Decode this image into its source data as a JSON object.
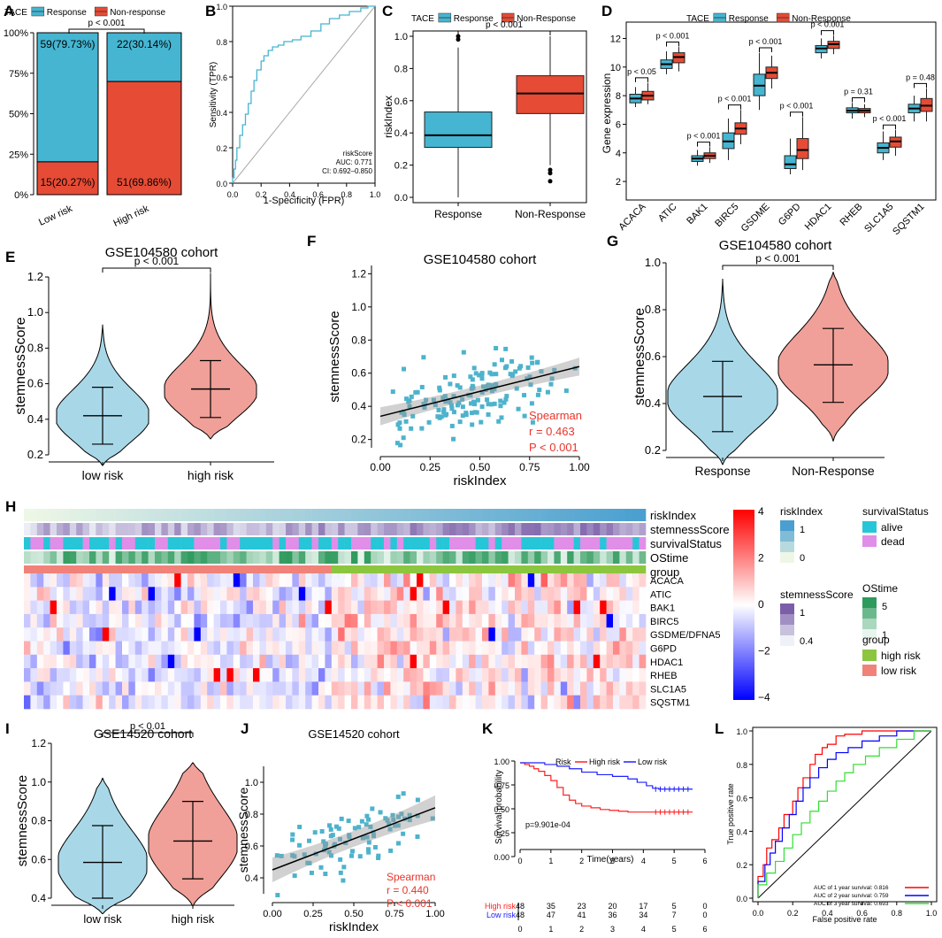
{
  "colors": {
    "response": "#45b5d1",
    "nonresponse": "#e64b35",
    "violin_low": "#a8d8e8",
    "violin_high": "#f0a098",
    "scatter": "#4db3cc",
    "spearman": "#e8362c",
    "km_high": "#ff2020",
    "km_low": "#2020ff",
    "roc1": "#ff0000",
    "roc2": "#0000ff",
    "roc3": "#33dd33"
  },
  "panels": {
    "A": {
      "letter": "A"
    },
    "B": {
      "letter": "B"
    },
    "C": {
      "letter": "C"
    },
    "D": {
      "letter": "D"
    },
    "E": {
      "letter": "E"
    },
    "F": {
      "letter": "F"
    },
    "G": {
      "letter": "G"
    },
    "H": {
      "letter": "H"
    },
    "I": {
      "letter": "I"
    },
    "J": {
      "letter": "J"
    },
    "K": {
      "letter": "K"
    },
    "L": {
      "letter": "L"
    }
  },
  "chart_data": [
    {
      "id": "A",
      "type": "bar",
      "stacked": true,
      "legend_title": "TACE",
      "legend": [
        "Response",
        "Non-response"
      ],
      "categories": [
        "Low risk",
        "High risk"
      ],
      "series": [
        {
          "name": "Response",
          "values": [
            79.73,
            30.14
          ],
          "labels": [
            "59(79.73%)",
            "22(30.14%)"
          ]
        },
        {
          "name": "Non-response",
          "values": [
            20.27,
            69.86
          ],
          "labels": [
            "15(20.27%)",
            "51(69.86%)"
          ]
        }
      ],
      "yticks": [
        "0%",
        "25%",
        "50%",
        "75%",
        "100%"
      ],
      "pvalue": "p < 0.001"
    },
    {
      "id": "B",
      "type": "line",
      "title": "",
      "xlabel": "1-Specificity (FPR)",
      "ylabel": "Sensitivity (TPR)",
      "xticks": [
        "0.0",
        "0.2",
        "0.4",
        "0.6",
        "0.8",
        "1.0"
      ],
      "yticks": [
        "0.0",
        "0.2",
        "0.4",
        "0.6",
        "0.8",
        "1.0"
      ],
      "annotation": [
        "riskScore",
        "AUC: 0.771",
        "CI: 0.692–0.850"
      ],
      "roc": [
        [
          0,
          0
        ],
        [
          0.01,
          0.03
        ],
        [
          0.02,
          0.08
        ],
        [
          0.03,
          0.13
        ],
        [
          0.05,
          0.2
        ],
        [
          0.07,
          0.27
        ],
        [
          0.09,
          0.33
        ],
        [
          0.11,
          0.39
        ],
        [
          0.13,
          0.45
        ],
        [
          0.15,
          0.52
        ],
        [
          0.17,
          0.58
        ],
        [
          0.2,
          0.64
        ],
        [
          0.22,
          0.69
        ],
        [
          0.25,
          0.72
        ],
        [
          0.28,
          0.75
        ],
        [
          0.32,
          0.77
        ],
        [
          0.36,
          0.78
        ],
        [
          0.42,
          0.8
        ],
        [
          0.48,
          0.81
        ],
        [
          0.55,
          0.83
        ],
        [
          0.62,
          0.86
        ],
        [
          0.68,
          0.9
        ],
        [
          0.75,
          0.93
        ],
        [
          0.82,
          0.95
        ],
        [
          0.9,
          0.97
        ],
        [
          0.95,
          0.99
        ],
        [
          1,
          1
        ]
      ]
    },
    {
      "id": "C",
      "type": "box",
      "legend_title": "TACE",
      "legend": [
        "Response",
        "Non-Response"
      ],
      "categories": [
        "Response",
        "Non-Response"
      ],
      "ylabel": "riskIndex",
      "yticks": [
        "0.0",
        "0.2",
        "0.4",
        "0.6",
        "0.8",
        "1.0"
      ],
      "boxes": [
        {
          "min": 0.0,
          "q1": 0.31,
          "median": 0.385,
          "q3": 0.53,
          "max": 0.93,
          "outliers": [
            0.98,
            1.0
          ]
        },
        {
          "min": 0.2,
          "q1": 0.52,
          "median": 0.645,
          "q3": 0.755,
          "max": 1.0,
          "outliers": [
            0.17,
            0.15,
            0.1
          ]
        }
      ],
      "pvalue": "p < 0.001"
    },
    {
      "id": "D",
      "type": "box",
      "legend_title": "TACE",
      "legend": [
        "Response",
        "Non-Response"
      ],
      "categories": [
        "ACACA",
        "ATIC",
        "BAK1",
        "BIRC5",
        "GSDME",
        "G6PD",
        "HDAC1",
        "RHEB",
        "SLC1A5",
        "SQSTM1"
      ],
      "ylabel": "Gene expression",
      "yticks": [
        "2",
        "4",
        "6",
        "8",
        "10",
        "12"
      ],
      "pvalues": [
        "p < 0.05",
        "p < 0.001",
        "p < 0.001",
        "p < 0.001",
        "p < 0.001",
        "p < 0.001",
        "p < 0.001",
        "p = 0.31",
        "p < 0.001",
        "p = 0.48"
      ],
      "series": [
        {
          "name": "Response",
          "boxes": [
            [
              7.2,
              7.5,
              7.8,
              8.1,
              8.6
            ],
            [
              9.5,
              9.9,
              10.2,
              10.5,
              11.1
            ],
            [
              3.1,
              3.4,
              3.6,
              3.8,
              4.2
            ],
            [
              3.5,
              4.3,
              4.8,
              5.4,
              6.4
            ],
            [
              7.0,
              8.0,
              8.7,
              9.5,
              11.0
            ],
            [
              2.5,
              2.9,
              3.2,
              3.8,
              5.0
            ],
            [
              10.6,
              11.0,
              11.3,
              11.5,
              12.0
            ],
            [
              6.4,
              6.8,
              6.95,
              7.15,
              7.5
            ],
            [
              3.5,
              4.0,
              4.35,
              4.7,
              5.5
            ],
            [
              6.2,
              6.8,
              7.1,
              7.4,
              8.0
            ]
          ]
        },
        {
          "name": "Non-Response",
          "boxes": [
            [
              7.4,
              7.7,
              8.0,
              8.3,
              8.9
            ],
            [
              9.7,
              10.3,
              10.7,
              11.0,
              11.4
            ],
            [
              3.3,
              3.6,
              3.8,
              4.0,
              4.4
            ],
            [
              4.6,
              5.3,
              5.7,
              6.1,
              7.0
            ],
            [
              8.5,
              9.2,
              9.6,
              10.0,
              10.8
            ],
            [
              2.8,
              3.6,
              4.2,
              5.0,
              6.5
            ],
            [
              10.9,
              11.3,
              11.6,
              11.8,
              12.2
            ],
            [
              6.5,
              6.8,
              6.95,
              7.1,
              7.4
            ],
            [
              3.8,
              4.4,
              4.8,
              5.1,
              5.6
            ],
            [
              6.2,
              6.9,
              7.3,
              7.8,
              8.5
            ]
          ]
        }
      ]
    },
    {
      "id": "E",
      "type": "violin",
      "title": "GSE104580 cohort",
      "categories": [
        "low risk",
        "high risk"
      ],
      "ylabel": "stemnessScore",
      "yticks": [
        "0.2",
        "0.4",
        "0.6",
        "0.8",
        "1.0",
        "1.2"
      ],
      "stats": [
        {
          "mean": 0.42,
          "lo": 0.26,
          "hi": 0.58,
          "min": 0.14,
          "max": 0.93
        },
        {
          "mean": 0.57,
          "lo": 0.41,
          "hi": 0.73,
          "min": 0.29,
          "max": 1.22
        }
      ],
      "pvalue": "p < 0.001"
    },
    {
      "id": "F",
      "type": "scatter",
      "title": "GSE104580 cohort",
      "xlabel": "riskIndex",
      "ylabel": "stemnessScore",
      "xticks": [
        "0.00",
        "0.25",
        "0.50",
        "0.75",
        "1.00"
      ],
      "yticks": [
        "0.2",
        "0.4",
        "0.6",
        "0.8",
        "1.0",
        "1.2"
      ],
      "stats": [
        "Spearman",
        "r = 0.463",
        "P < 0.001"
      ],
      "fit": [
        [
          0,
          0.34
        ],
        [
          1,
          0.64
        ]
      ]
    },
    {
      "id": "G",
      "type": "violin",
      "title": "GSE104580 cohort",
      "categories": [
        "Response",
        "Non-Response"
      ],
      "ylabel": "stemnessScore",
      "yticks": [
        "0.2",
        "0.4",
        "0.6",
        "0.8",
        "1.0"
      ],
      "stats": [
        {
          "mean": 0.43,
          "lo": 0.28,
          "hi": 0.58,
          "min": 0.14,
          "max": 0.93
        },
        {
          "mean": 0.565,
          "lo": 0.405,
          "hi": 0.72,
          "min": 0.24,
          "max": 0.96
        }
      ],
      "pvalue": "p < 0.001"
    },
    {
      "id": "H",
      "type": "heatmap",
      "annotation_rows": [
        "riskIndex",
        "stemnessScore",
        "survivalStatus",
        "OStime",
        "group"
      ],
      "gene_rows": [
        "ACACA",
        "ATIC",
        "BAK1",
        "BIRC5",
        "GSDME/DFNA5",
        "G6PD",
        "HDAC1",
        "RHEB",
        "SLC1A5",
        "SQSTM1"
      ],
      "colorbar_ticks": [
        "4",
        "2",
        "0",
        "−2",
        "−4"
      ],
      "legends": {
        "riskIndex": {
          "title": "riskIndex",
          "ticks": [
            "1",
            "0"
          ]
        },
        "stemnessScore": {
          "title": "stemnessScore",
          "ticks": [
            "1",
            "0.4"
          ]
        },
        "survivalStatus": {
          "title": "survivalStatus",
          "items": [
            "alive",
            "dead"
          ]
        },
        "OStime": {
          "title": "OStime",
          "ticks": [
            "5",
            "1"
          ]
        },
        "group": {
          "title": "group",
          "items": [
            "high risk",
            "low risk"
          ]
        }
      }
    },
    {
      "id": "I",
      "type": "violin",
      "title": "GSE14520 cohort",
      "categories": [
        "low risk",
        "high risk"
      ],
      "ylabel": "stemnessScore",
      "yticks": [
        "0.4",
        "0.6",
        "0.8",
        "1.0",
        "1.2"
      ],
      "stats": [
        {
          "mean": 0.585,
          "lo": 0.4,
          "hi": 0.775,
          "min": 0.32,
          "max": 1.02
        },
        {
          "mean": 0.695,
          "lo": 0.5,
          "hi": 0.9,
          "min": 0.36,
          "max": 1.1
        }
      ],
      "pvalue": "p < 0.01"
    },
    {
      "id": "J",
      "type": "scatter",
      "title": "GSE14520 cohort",
      "xlabel": "riskIndex",
      "ylabel": "stemnessScore",
      "xticks": [
        "0.00",
        "0.25",
        "0.50",
        "0.75",
        "1.00"
      ],
      "yticks": [
        "0.4",
        "0.6",
        "0.8",
        "1.0"
      ],
      "stats": [
        "Spearman",
        "r = 0.440",
        "P < 0.001"
      ],
      "fit": [
        [
          0,
          0.45
        ],
        [
          1,
          0.84
        ]
      ]
    },
    {
      "id": "K",
      "type": "line",
      "legend_title": "Risk",
      "legend": [
        "High risk",
        "Low risk"
      ],
      "xlabel": "Time(years)",
      "ylabel": "Survival probability",
      "xticks": [
        "0",
        "1",
        "2",
        "3",
        "4",
        "5",
        "6"
      ],
      "yticks": [
        "0.00",
        "0.25",
        "0.50",
        "0.75",
        "1.00"
      ],
      "pvalue": "p=9.901e-04",
      "series": [
        {
          "name": "High risk",
          "points": [
            [
              0,
              1
            ],
            [
              0.15,
              0.98
            ],
            [
              0.3,
              0.96
            ],
            [
              0.45,
              0.93
            ],
            [
              0.6,
              0.9
            ],
            [
              0.8,
              0.85
            ],
            [
              1.0,
              0.79
            ],
            [
              1.2,
              0.71
            ],
            [
              1.4,
              0.62
            ],
            [
              1.6,
              0.56
            ],
            [
              1.8,
              0.52
            ],
            [
              2.0,
              0.49
            ],
            [
              2.3,
              0.47
            ],
            [
              2.6,
              0.45
            ],
            [
              2.9,
              0.44
            ],
            [
              3.2,
              0.43
            ],
            [
              3.5,
              0.42
            ],
            [
              4.0,
              0.42
            ],
            [
              5.6,
              0.42
            ]
          ]
        },
        {
          "name": "Low risk",
          "points": [
            [
              0,
              1
            ],
            [
              0.5,
              1
            ],
            [
              0.8,
              0.98
            ],
            [
              1.2,
              0.96
            ],
            [
              1.6,
              0.93
            ],
            [
              2.0,
              0.89
            ],
            [
              2.5,
              0.86
            ],
            [
              3.0,
              0.84
            ],
            [
              3.5,
              0.81
            ],
            [
              3.8,
              0.77
            ],
            [
              4.1,
              0.73
            ],
            [
              4.3,
              0.7
            ],
            [
              4.5,
              0.69
            ],
            [
              5.6,
              0.69
            ]
          ]
        }
      ],
      "risk_table": {
        "labels": [
          "High risk",
          "Low risk"
        ],
        "High risk": [
          "48",
          "35",
          "23",
          "20",
          "17",
          "5",
          "0"
        ],
        "Low risk": [
          "48",
          "47",
          "41",
          "36",
          "34",
          "7",
          "0"
        ],
        "times": [
          "0",
          "1",
          "2",
          "3",
          "4",
          "5",
          "6"
        ]
      }
    },
    {
      "id": "L",
      "type": "line",
      "xlabel": "False positive rate",
      "ylabel": "True positive rate",
      "xticks": [
        "0.0",
        "0.2",
        "0.4",
        "0.6",
        "0.8",
        "1.0"
      ],
      "yticks": [
        "0.0",
        "0.2",
        "0.4",
        "0.6",
        "0.8",
        "1.0"
      ],
      "series": [
        {
          "name": "AUC of 1 year survival: 0.816",
          "points": [
            [
              0,
              0
            ],
            [
              0.03,
              0.13
            ],
            [
              0.05,
              0.2
            ],
            [
              0.08,
              0.3
            ],
            [
              0.12,
              0.35
            ],
            [
              0.15,
              0.42
            ],
            [
              0.2,
              0.5
            ],
            [
              0.23,
              0.58
            ],
            [
              0.26,
              0.66
            ],
            [
              0.3,
              0.72
            ],
            [
              0.33,
              0.8
            ],
            [
              0.37,
              0.86
            ],
            [
              0.4,
              0.9
            ],
            [
              0.45,
              0.92
            ],
            [
              0.5,
              0.97
            ],
            [
              0.6,
              0.98
            ],
            [
              0.7,
              1
            ],
            [
              1,
              1
            ]
          ]
        },
        {
          "name": "AUC of 2 year survival: 0.759",
          "points": [
            [
              0,
              0
            ],
            [
              0.04,
              0.1
            ],
            [
              0.07,
              0.2
            ],
            [
              0.1,
              0.27
            ],
            [
              0.14,
              0.34
            ],
            [
              0.18,
              0.42
            ],
            [
              0.22,
              0.5
            ],
            [
              0.26,
              0.58
            ],
            [
              0.3,
              0.66
            ],
            [
              0.35,
              0.72
            ],
            [
              0.4,
              0.78
            ],
            [
              0.45,
              0.83
            ],
            [
              0.52,
              0.87
            ],
            [
              0.6,
              0.9
            ],
            [
              0.7,
              0.94
            ],
            [
              0.8,
              0.97
            ],
            [
              1,
              1
            ]
          ]
        },
        {
          "name": "AUC of 3 year survival: 0.693",
          "points": [
            [
              0,
              0
            ],
            [
              0.05,
              0.08
            ],
            [
              0.1,
              0.15
            ],
            [
              0.15,
              0.22
            ],
            [
              0.2,
              0.3
            ],
            [
              0.25,
              0.38
            ],
            [
              0.3,
              0.45
            ],
            [
              0.35,
              0.52
            ],
            [
              0.4,
              0.58
            ],
            [
              0.45,
              0.64
            ],
            [
              0.5,
              0.7
            ],
            [
              0.55,
              0.75
            ],
            [
              0.62,
              0.8
            ],
            [
              0.7,
              0.85
            ],
            [
              0.8,
              0.9
            ],
            [
              0.9,
              0.95
            ],
            [
              1,
              1
            ]
          ]
        }
      ]
    }
  ]
}
